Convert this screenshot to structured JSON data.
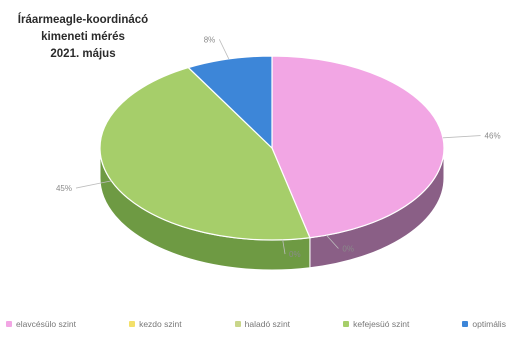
{
  "chart_data": {
    "type": "pie",
    "title": [
      "Íráarmeagle-koordinácó",
      "kimeneti mérés",
      "2021. május"
    ],
    "categories": [
      "elavcésülo szint",
      "kezdo szint",
      "haladó szint",
      "kefejesüó szint",
      "optimális"
    ],
    "values": [
      46,
      0,
      0,
      45,
      8
    ],
    "data_labels": [
      "46%",
      "0%",
      "0%",
      "45%",
      "8%"
    ],
    "colors": [
      "#f2a6e4",
      "#f3e06a",
      "#c9d68a",
      "#a6ce6a",
      "#3d86d8"
    ],
    "side_colors": [
      "#8a5f86",
      "#a39a4a",
      "#8b9656",
      "#6e9a43",
      "#2a5f9c"
    ],
    "legend_position": "bottom"
  }
}
